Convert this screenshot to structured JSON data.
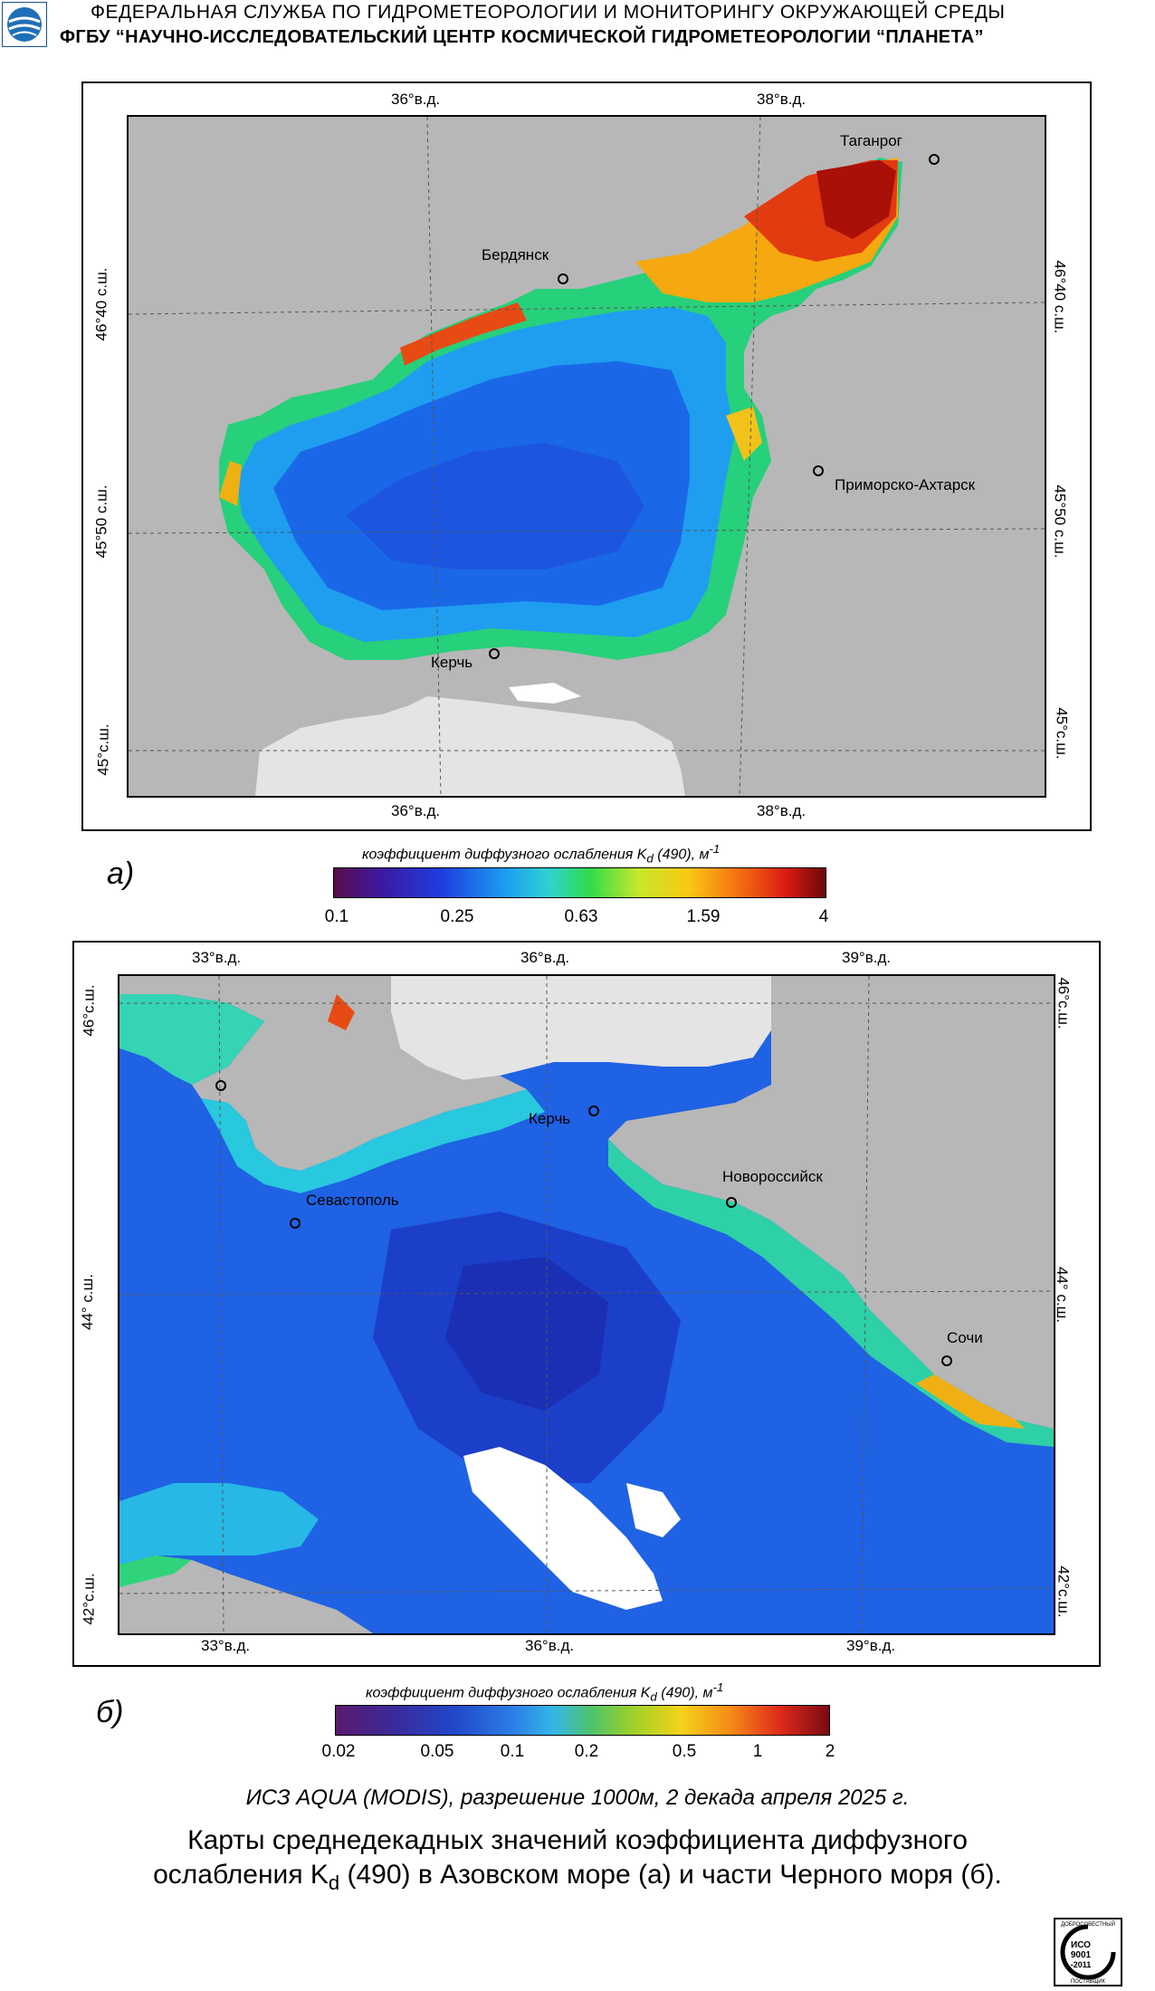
{
  "header": {
    "line1": "ФЕДЕРАЛЬНАЯ  СЛУЖБА  ПО ГИДРОМЕТЕОРОЛОГИИ И МОНИТОРИНГУ ОКРУЖАЮЩЕЙ СРЕДЫ",
    "line2": "ФГБУ “НАУЧНО-ИССЛЕДОВАТЕЛЬСКИЙ ЦЕНТР КОСМИЧЕСКОЙ ГИДРОМЕТЕОРОЛОГИИ “ПЛАНЕТА”"
  },
  "map_a": {
    "panel_label": "а)",
    "lon_labels": [
      "36°в.д.",
      "38°в.д."
    ],
    "lat_labels": [
      "46°40 с.ш.",
      "45°50 с.ш.",
      "45°с.ш."
    ],
    "cities": [
      "Таганрог",
      "Бердянск",
      "Приморско-Ахтарск",
      "Керчь"
    ],
    "colorbar": {
      "title": "коэффициент диффузного ослабления  K",
      "title_sub": "d",
      "title_tail": " (490), м",
      "title_sup": "-1",
      "ticks": [
        "0.1",
        "0.25",
        "0.63",
        "1.59",
        "4"
      ]
    }
  },
  "map_b": {
    "panel_label": "б)",
    "lon_labels": [
      "33°в.д.",
      "36°в.д.",
      "39°в.д."
    ],
    "lat_labels": [
      "46°с.ш.",
      "44° с.ш.",
      "42°с.ш."
    ],
    "cities": [
      "Керчь",
      "Севастополь",
      "Новороссийск",
      "Сочи"
    ],
    "colorbar": {
      "title": "коэффициент диффузного ослабления  K",
      "title_sub": "d",
      "title_tail": " (490), м",
      "title_sup": "-1",
      "ticks": [
        "0.02",
        "0.05",
        "0.1",
        "0.2",
        "0.5",
        "1",
        "2"
      ]
    }
  },
  "footer": {
    "subtitle": "ИСЗ AQUA (MODIS), разрешение 1000м, 2 декада апреля 2025 г.",
    "caption_1": "Карты среднедекадных значений коэффициента диффузного",
    "caption_2a": "ослабления K",
    "caption_2b": "d",
    "caption_2c": " (490) в Азовском море (а) и части Черного моря (б).",
    "badge": [
      "ДОБРОСОВЕСТНЫЙ",
      "ИСО",
      "9001",
      "-2011",
      "ПОСТАВЩИК"
    ]
  }
}
